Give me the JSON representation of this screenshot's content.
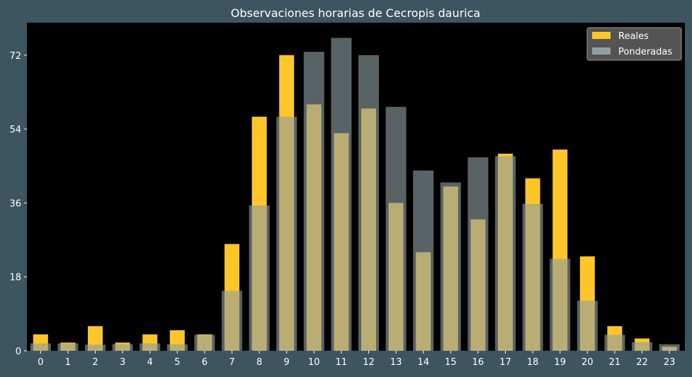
{
  "chart_data": {
    "type": "bar",
    "title": "Observaciones horarias de Cecropis daurica",
    "xlabel": "",
    "ylabel": "",
    "categories": [
      "0",
      "1",
      "2",
      "3",
      "4",
      "5",
      "6",
      "7",
      "8",
      "9",
      "10",
      "11",
      "12",
      "13",
      "14",
      "15",
      "16",
      "17",
      "18",
      "19",
      "20",
      "21",
      "22",
      "23"
    ],
    "series": [
      {
        "name": "Reales",
        "color": "#ffc629",
        "values": [
          4,
          2,
          6,
          2,
          4,
          5,
          4,
          26,
          57,
          72,
          60,
          53,
          59,
          36,
          24,
          40,
          32,
          48,
          42,
          49,
          23,
          6,
          3,
          1
        ]
      },
      {
        "name": "Ponderadas",
        "color": "#8f9ea1",
        "values": [
          1.8,
          1.8,
          1.5,
          1.6,
          1.8,
          1.6,
          3.9,
          14.6,
          35.4,
          57.0,
          72.8,
          76.2,
          72.0,
          59.4,
          43.9,
          41.0,
          47.1,
          47.4,
          35.8,
          22.4,
          12.2,
          3.9,
          2.1,
          1.6
        ]
      }
    ],
    "yticks": [
      0,
      18,
      36,
      54,
      72
    ],
    "ylim": [
      0,
      79.9
    ],
    "grid": false,
    "legend": "top-right"
  }
}
